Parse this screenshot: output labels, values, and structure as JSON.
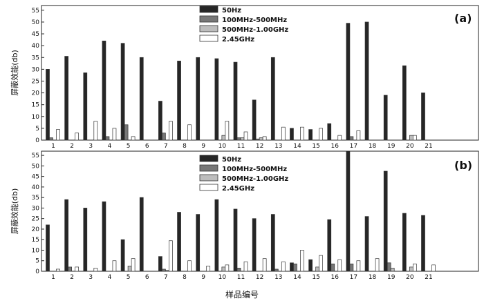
{
  "xlabel": "样品编号",
  "chart_data": [
    {
      "type": "bar",
      "panel_label": "(a)",
      "ylabel": "屏蔽效能(db)",
      "xlabel": "",
      "ylim": [
        0,
        57
      ],
      "yticks": [
        0,
        5,
        10,
        15,
        20,
        25,
        30,
        35,
        40,
        45,
        50,
        55
      ],
      "categories": [
        "1",
        "2",
        "3",
        "4",
        "5",
        "6",
        "7",
        "8",
        "9",
        "10",
        "11",
        "12",
        "13",
        "14",
        "15",
        "16",
        "17",
        "18",
        "19",
        "20",
        "21"
      ],
      "legend_position": "top-center",
      "grid": false,
      "series": [
        {
          "name": "50Hz",
          "color": "#262626",
          "values": [
            30,
            35.5,
            28.5,
            42,
            41,
            35,
            16.5,
            33.5,
            35,
            34.5,
            33,
            17,
            35,
            5,
            4.5,
            7,
            49.5,
            50,
            19,
            31.5,
            20
          ]
        },
        {
          "name": "100MHz-500MHz",
          "color": "#777777",
          "values": [
            1,
            0,
            0,
            1.5,
            6.5,
            0,
            3,
            0,
            0,
            0,
            1,
            0.5,
            0,
            0,
            0,
            0,
            1.5,
            0,
            0,
            0,
            0
          ]
        },
        {
          "name": "500MHz-1.00GHz",
          "color": "#bdbdbd",
          "values": [
            0,
            0,
            0,
            0,
            0,
            0,
            0,
            0,
            0,
            2,
            1,
            1,
            0,
            0,
            0,
            0,
            0,
            0,
            0,
            2,
            0
          ]
        },
        {
          "name": "2.45GHz",
          "color": "#ffffff",
          "values": [
            4.5,
            3,
            8,
            5,
            1.5,
            0,
            8,
            6.5,
            0,
            8,
            3.5,
            1.5,
            5.5,
            5.5,
            5,
            2,
            4,
            0,
            0,
            2,
            0
          ]
        }
      ]
    },
    {
      "type": "bar",
      "panel_label": "(b)",
      "ylabel": "屏蔽效能(db)",
      "xlabel": "样品编号",
      "ylim": [
        0,
        57
      ],
      "yticks": [
        0,
        5,
        10,
        15,
        20,
        25,
        30,
        35,
        40,
        45,
        50,
        55
      ],
      "categories": [
        "1",
        "2",
        "3",
        "4",
        "5",
        "6",
        "7",
        "8",
        "9",
        "10",
        "11",
        "12",
        "13",
        "14",
        "15",
        "16",
        "17",
        "18",
        "19",
        "20",
        "21"
      ],
      "legend_position": "top-center",
      "grid": false,
      "series": [
        {
          "name": "50Hz",
          "color": "#262626",
          "values": [
            22,
            34,
            30,
            33,
            15,
            35,
            7,
            28,
            27,
            34,
            29.5,
            25,
            27,
            4,
            5.5,
            24.5,
            57,
            26,
            47.5,
            27.5,
            26.5
          ]
        },
        {
          "name": "100MHz-500MHz",
          "color": "#777777",
          "values": [
            0,
            2,
            0,
            0,
            0,
            0,
            1,
            0,
            0,
            0,
            1.5,
            0,
            1,
            3.5,
            0,
            3.5,
            3.5,
            0,
            4,
            0,
            0
          ]
        },
        {
          "name": "500MHz-1.00GHz",
          "color": "#bdbdbd",
          "values": [
            0,
            0,
            0,
            0,
            2.5,
            0,
            0.5,
            0,
            0,
            2,
            0,
            0,
            0,
            0,
            2,
            0,
            0,
            0,
            1.5,
            2,
            0
          ]
        },
        {
          "name": "2.45GHz",
          "color": "#ffffff",
          "values": [
            1,
            2,
            1.5,
            5,
            6,
            0,
            14.5,
            5,
            2.5,
            3,
            4.5,
            6,
            4.5,
            10,
            7.5,
            5.5,
            5,
            6,
            0,
            3.5,
            3
          ]
        }
      ]
    }
  ]
}
